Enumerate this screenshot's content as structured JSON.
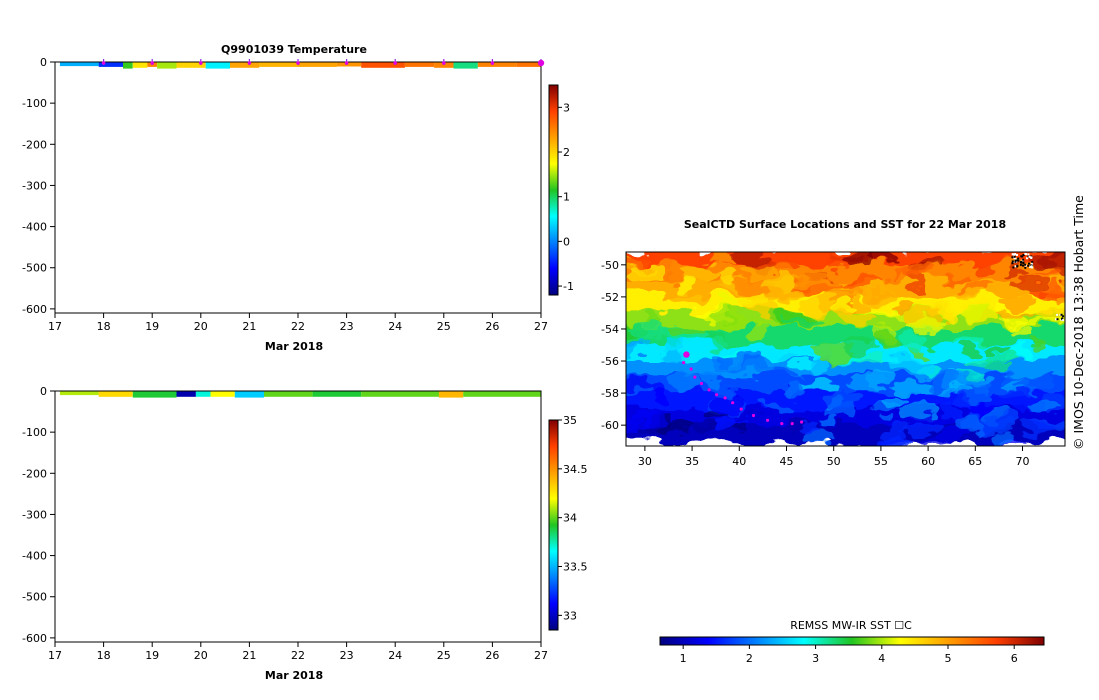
{
  "chart_data": [
    {
      "type": "heatmap",
      "title": "Q9901039  Temperature",
      "xlabel": "Mar 2018",
      "x_ticks": [
        "17",
        "18",
        "19",
        "20",
        "21",
        "22",
        "23",
        "24",
        "25",
        "26",
        "27"
      ],
      "y_ticks": [
        "0",
        "-100",
        "-200",
        "-300",
        "-400",
        "-500",
        "-600"
      ],
      "xlim": [
        17,
        27
      ],
      "ylim": [
        -610,
        0
      ],
      "colorbar": {
        "min": -1.2,
        "max": 3.5,
        "ticks": [
          "-1",
          "0",
          "1",
          "2",
          "3"
        ]
      },
      "profile_marks_x": [
        18,
        19,
        20,
        21,
        22,
        23,
        24,
        25,
        26,
        27
      ],
      "segments": [
        {
          "x0": 17.1,
          "x1": 17.9,
          "depth": -10,
          "value": 0.2
        },
        {
          "x0": 17.9,
          "x1": 18.4,
          "depth": -12,
          "value": -0.4
        },
        {
          "x0": 18.4,
          "x1": 18.6,
          "depth": -16,
          "value": 1.2
        },
        {
          "x0": 18.6,
          "x1": 18.9,
          "depth": -14,
          "value": 1.9
        },
        {
          "x0": 18.9,
          "x1": 19.1,
          "depth": -12,
          "value": 2.5
        },
        {
          "x0": 19.1,
          "x1": 19.5,
          "depth": -16,
          "value": 1.5
        },
        {
          "x0": 19.5,
          "x1": 20.1,
          "depth": -14,
          "value": 2.0
        },
        {
          "x0": 20.1,
          "x1": 20.6,
          "depth": -16,
          "value": 0.5
        },
        {
          "x0": 20.6,
          "x1": 21.2,
          "depth": -14,
          "value": 2.3
        },
        {
          "x0": 21.2,
          "x1": 22.0,
          "depth": -12,
          "value": 2.2
        },
        {
          "x0": 22.0,
          "x1": 22.8,
          "depth": -12,
          "value": 2.3
        },
        {
          "x0": 22.8,
          "x1": 23.3,
          "depth": -11,
          "value": 2.4
        },
        {
          "x0": 23.3,
          "x1": 24.2,
          "depth": -14,
          "value": 2.8
        },
        {
          "x0": 24.2,
          "x1": 24.8,
          "depth": -12,
          "value": 2.6
        },
        {
          "x0": 24.8,
          "x1": 25.2,
          "depth": -14,
          "value": 2.5
        },
        {
          "x0": 25.2,
          "x1": 25.7,
          "depth": -16,
          "value": 0.9
        },
        {
          "x0": 25.7,
          "x1": 26.5,
          "depth": -12,
          "value": 2.5
        },
        {
          "x0": 26.5,
          "x1": 27.0,
          "depth": -12,
          "value": 2.6
        }
      ]
    },
    {
      "type": "heatmap",
      "title": "",
      "xlabel": "Mar 2018",
      "x_ticks": [
        "17",
        "18",
        "19",
        "20",
        "21",
        "22",
        "23",
        "24",
        "25",
        "26",
        "27"
      ],
      "y_ticks": [
        "0",
        "-100",
        "-200",
        "-300",
        "-400",
        "-500",
        "-600"
      ],
      "xlim": [
        17,
        27
      ],
      "ylim": [
        -610,
        0
      ],
      "colorbar": {
        "min": 32.85,
        "max": 35.0,
        "ticks": [
          "33",
          "33.5",
          "34",
          "34.5",
          "35"
        ]
      },
      "segments": [
        {
          "x0": 17.1,
          "x1": 17.9,
          "depth": -10,
          "value": 34.1
        },
        {
          "x0": 17.9,
          "x1": 18.6,
          "depth": -14,
          "value": 34.3
        },
        {
          "x0": 18.6,
          "x1": 19.5,
          "depth": -16,
          "value": 33.9
        },
        {
          "x0": 19.5,
          "x1": 19.9,
          "depth": -14,
          "value": 32.95
        },
        {
          "x0": 19.9,
          "x1": 20.2,
          "depth": -14,
          "value": 33.7
        },
        {
          "x0": 20.2,
          "x1": 20.7,
          "depth": -14,
          "value": 34.2
        },
        {
          "x0": 20.7,
          "x1": 21.3,
          "depth": -16,
          "value": 33.55
        },
        {
          "x0": 21.3,
          "x1": 22.3,
          "depth": -14,
          "value": 34.0
        },
        {
          "x0": 22.3,
          "x1": 23.3,
          "depth": -14,
          "value": 33.9
        },
        {
          "x0": 23.3,
          "x1": 24.9,
          "depth": -14,
          "value": 34.0
        },
        {
          "x0": 24.9,
          "x1": 25.4,
          "depth": -16,
          "value": 34.4
        },
        {
          "x0": 25.4,
          "x1": 27.0,
          "depth": -14,
          "value": 34.0
        }
      ]
    },
    {
      "type": "heatmap",
      "title": "SealCTD Surface Locations and SST for 22 Mar 2018",
      "x_ticks": [
        "30",
        "35",
        "40",
        "45",
        "50",
        "55",
        "60",
        "65",
        "70"
      ],
      "y_ticks": [
        "-50",
        "-52",
        "-54",
        "-56",
        "-58",
        "-60"
      ],
      "xlim": [
        28,
        74.5
      ],
      "ylim": [
        -61.3,
        -49.2
      ],
      "colorbar": {
        "label": "REMSS MW-IR SST ☐C",
        "min": 0.65,
        "max": 6.45,
        "ticks": [
          "1",
          "2",
          "3",
          "4",
          "5",
          "6"
        ]
      },
      "sst_bands": [
        {
          "lat": -49.5,
          "sst": 5.7
        },
        {
          "lat": -50.5,
          "sst": 5.2
        },
        {
          "lat": -51.5,
          "sst": 4.9
        },
        {
          "lat": -52.5,
          "sst": 4.4
        },
        {
          "lat": -53.5,
          "sst": 3.9
        },
        {
          "lat": -54.5,
          "sst": 3.3
        },
        {
          "lat": -55.5,
          "sst": 2.7
        },
        {
          "lat": -56.5,
          "sst": 2.2
        },
        {
          "lat": -57.5,
          "sst": 1.8
        },
        {
          "lat": -58.5,
          "sst": 1.5
        },
        {
          "lat": -59.5,
          "sst": 1.2
        },
        {
          "lat": -60.5,
          "sst": 1.0
        }
      ],
      "seal_track": {
        "lon": [
          34.3,
          34.1,
          34.9,
          35.3,
          36.0,
          36.8,
          37.6,
          38.5,
          39.3,
          40.2,
          41.5,
          43.0,
          44.5,
          45.6,
          46.6
        ],
        "lat": [
          -55.6,
          -56.1,
          -56.5,
          -57.0,
          -57.4,
          -57.8,
          -58.1,
          -58.3,
          -58.6,
          -59.0,
          -59.4,
          -59.7,
          -59.9,
          -59.9,
          -59.8
        ]
      },
      "seal_current": {
        "lon": 34.4,
        "lat": -55.6
      }
    }
  ],
  "credit": "©  IMOS 10-Dec-2018 13:38 Hobart Time",
  "colors": {
    "marker": "#e000e0",
    "marker_stem": "#8a2be2"
  }
}
